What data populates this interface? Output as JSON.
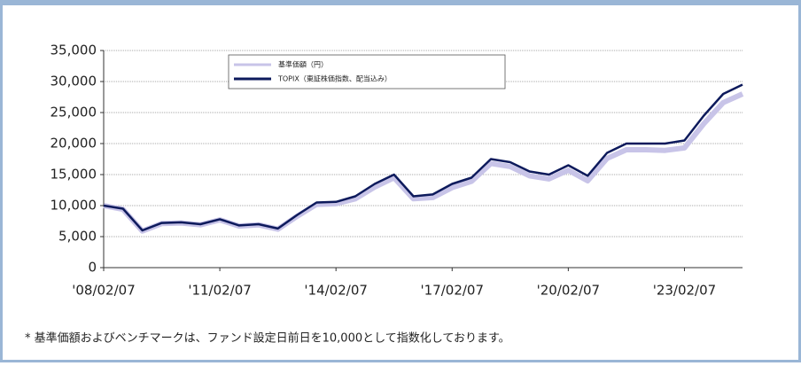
{
  "chart_data": {
    "type": "line",
    "categories": [
      "'08/02/07",
      null,
      null,
      null,
      null,
      null,
      "'11/02/07",
      null,
      null,
      null,
      null,
      null,
      "'14/02/07",
      null,
      null,
      null,
      null,
      null,
      "'17/02/07",
      null,
      null,
      null,
      null,
      null,
      "'20/02/07",
      null,
      null,
      null,
      null,
      null,
      "'23/02/07",
      null,
      null,
      null
    ],
    "series": [
      {
        "name": "基準価額（円）",
        "color": "#c8c4e8",
        "values": [
          10000,
          9400,
          5900,
          7100,
          7200,
          6900,
          7700,
          6700,
          6900,
          6200,
          8300,
          10200,
          10300,
          11100,
          13000,
          14500,
          11100,
          11300,
          12900,
          13900,
          16800,
          16300,
          14800,
          14300,
          15700,
          14000,
          17600,
          19000,
          19000,
          18900,
          19300,
          23200,
          26600,
          28000
        ]
      },
      {
        "name": "TOPIX（東証株価指数、配当込み）",
        "color": "#0d1a5c",
        "values": [
          10000,
          9500,
          6000,
          7200,
          7300,
          7000,
          7800,
          6800,
          7000,
          6300,
          8500,
          10500,
          10600,
          11500,
          13500,
          15000,
          11500,
          11800,
          13500,
          14500,
          17500,
          17000,
          15500,
          15000,
          16500,
          14800,
          18500,
          20000,
          20000,
          20000,
          20500,
          24500,
          28000,
          29500
        ]
      }
    ],
    "ylim": [
      0,
      35000
    ],
    "yticks": [
      0,
      {
        "value": 5000,
        "label": "5,000"
      },
      {
        "value": 10000,
        "label": "10,000"
      },
      {
        "value": 15000,
        "label": "15,000"
      },
      {
        "value": 20000,
        "label": "20,000"
      },
      {
        "value": 25000,
        "label": "25,000"
      },
      {
        "value": 30000,
        "label": "30,000"
      },
      {
        "value": 35000,
        "label": "35,000"
      }
    ],
    "grid": true,
    "note": "* 基準価額およびベンチマークは、ファンド設定日前日を10,000として指数化しております。"
  }
}
